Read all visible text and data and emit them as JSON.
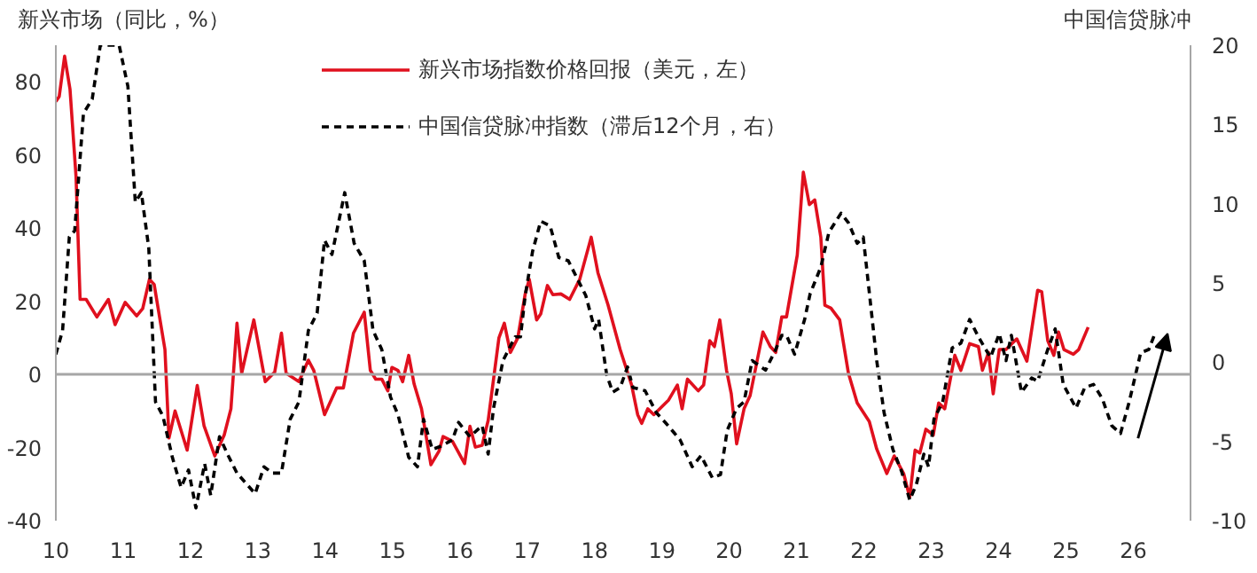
{
  "chart_data": {
    "type": "line",
    "ylabel": "新兴市场（同比，%）",
    "y2label": "中国信贷脉冲",
    "xlim": [
      10,
      26.85
    ],
    "xticks": [
      10,
      11,
      12,
      13,
      14,
      15,
      16,
      17,
      18,
      19,
      20,
      21,
      22,
      23,
      24,
      25,
      26
    ],
    "ylim": [
      -40,
      90
    ],
    "yticks": [
      -40,
      -20,
      0,
      20,
      40,
      60,
      80
    ],
    "y2lim": [
      -10,
      20
    ],
    "y2ticks": [
      -10,
      -5,
      0,
      5,
      10,
      15,
      20
    ],
    "grid": false,
    "legend": "top",
    "ref_lines": [
      {
        "axis": "y",
        "value": 0,
        "color": "#a6a6a6"
      }
    ],
    "series": [
      {
        "name": "新兴市场指数价格回报（美元，左）",
        "color": "#e0101e",
        "line_style": "solid",
        "x": [
          10.0,
          10.05,
          10.13,
          10.21,
          10.3,
          10.36,
          10.45,
          10.61,
          10.78,
          10.88,
          11.03,
          11.2,
          11.29,
          11.39,
          11.46,
          11.62,
          11.68,
          11.77,
          11.95,
          12.1,
          12.2,
          12.36,
          12.5,
          12.6,
          12.69,
          12.76,
          12.94,
          13.11,
          13.25,
          13.35,
          13.42,
          13.61,
          13.75,
          13.83,
          13.99,
          14.17,
          14.27,
          14.42,
          14.58,
          14.67,
          14.75,
          14.84,
          14.93,
          14.99,
          15.08,
          15.15,
          15.24,
          15.32,
          15.43,
          15.57,
          15.69,
          15.75,
          15.89,
          16.07,
          16.15,
          16.23,
          16.33,
          16.42,
          16.58,
          16.66,
          16.75,
          16.86,
          16.97,
          17.03,
          17.14,
          17.2,
          17.3,
          17.38,
          17.5,
          17.63,
          17.78,
          17.95,
          18.05,
          18.2,
          18.38,
          18.55,
          18.64,
          18.7,
          18.79,
          18.88,
          19.1,
          19.23,
          19.3,
          19.38,
          19.54,
          19.62,
          19.71,
          19.78,
          19.86,
          19.96,
          20.03,
          20.11,
          20.22,
          20.31,
          20.5,
          20.61,
          20.69,
          20.78,
          20.85,
          21.01,
          21.1,
          21.19,
          21.27,
          21.36,
          21.42,
          21.51,
          21.64,
          21.77,
          21.9,
          22.08,
          22.19,
          22.34,
          22.45,
          22.59,
          22.68,
          22.76,
          22.83,
          22.92,
          23.03,
          23.11,
          23.2,
          23.35,
          23.44,
          23.57,
          23.7,
          23.76,
          23.85,
          23.92,
          24.01,
          24.11,
          24.27,
          24.42,
          24.58,
          24.64,
          24.73,
          24.82,
          24.89,
          24.97,
          25.11,
          25.19,
          25.33
        ],
        "values": [
          74.6,
          76,
          87,
          78,
          54,
          20.5,
          20.5,
          15.7,
          20.5,
          13.6,
          19.7,
          16,
          18,
          26,
          24.6,
          6.8,
          -17.4,
          -10,
          -20.7,
          -3,
          -14,
          -22.3,
          -16.6,
          -9.4,
          14,
          0.3,
          14.9,
          -2,
          0.6,
          11.3,
          0.3,
          -2,
          3.9,
          1.1,
          -11,
          -3.7,
          -3.7,
          11.3,
          17,
          1.1,
          -1.3,
          -1.3,
          -4.5,
          1.9,
          1.1,
          -2,
          5.2,
          -2.6,
          -9.4,
          -24.7,
          -21,
          -17,
          -18.3,
          -24.4,
          -14.2,
          -19.9,
          -19.4,
          -12.6,
          10,
          14,
          6,
          10,
          22,
          26,
          14.9,
          16.5,
          24.3,
          21.8,
          22,
          20.5,
          26,
          37.5,
          27.8,
          19,
          6.8,
          -2.9,
          -11,
          -13.4,
          -9.4,
          -11,
          -7,
          -2.9,
          -9.4,
          -1.3,
          -4.5,
          -2.9,
          9.2,
          7.6,
          14.9,
          1.1,
          -5.3,
          -19,
          -9.4,
          -5.8,
          11.6,
          7.6,
          6,
          15.7,
          15.7,
          32.6,
          55.3,
          46.4,
          47.7,
          37.5,
          18.9,
          18.1,
          14.9,
          0.3,
          -7.8,
          -12.9,
          -20.4,
          -27.1,
          -22.3,
          -27.1,
          -33.6,
          -20.7,
          -21.5,
          -15,
          -16.6,
          -7.8,
          -9.4,
          5.2,
          1.1,
          8.4,
          7.6,
          1.1,
          6,
          -5.3,
          6.8,
          6.8,
          9.7,
          3.6,
          23,
          22.6,
          9.2,
          5.2,
          11.6,
          6.8,
          5.5,
          6.8,
          12.9
        ]
      },
      {
        "name": "中国信贷脉冲指数（滞后12个月，右）",
        "color": "#000000",
        "line_style": "dashed",
        "axis": "y2",
        "x": [
          10.0,
          10.1,
          10.2,
          10.28,
          10.41,
          10.54,
          10.66,
          10.75,
          10.94,
          11.07,
          11.18,
          11.27,
          11.38,
          11.48,
          11.59,
          11.73,
          11.86,
          11.97,
          12.08,
          12.21,
          12.3,
          12.43,
          12.56,
          12.69,
          12.96,
          13.09,
          13.22,
          13.35,
          13.48,
          13.61,
          13.75,
          13.88,
          13.99,
          14.1,
          14.29,
          14.43,
          14.58,
          14.71,
          14.84,
          14.97,
          15.08,
          15.24,
          15.37,
          15.46,
          15.59,
          15.72,
          15.89,
          15.98,
          16.15,
          16.33,
          16.42,
          16.5,
          16.64,
          16.82,
          16.9,
          16.97,
          17.08,
          17.2,
          17.34,
          17.47,
          17.61,
          17.74,
          17.87,
          18.0,
          18.06,
          18.18,
          18.27,
          18.38,
          18.49,
          18.57,
          18.75,
          18.92,
          19.05,
          19.27,
          19.45,
          19.58,
          19.75,
          19.87,
          19.97,
          20.11,
          20.22,
          20.34,
          20.54,
          20.69,
          20.78,
          20.85,
          20.97,
          21.12,
          21.2,
          21.36,
          21.48,
          21.66,
          21.77,
          21.9,
          21.99,
          22.08,
          22.19,
          22.3,
          22.43,
          22.56,
          22.68,
          22.78,
          22.89,
          22.96,
          23.04,
          23.17,
          23.31,
          23.44,
          23.57,
          23.7,
          23.88,
          24.01,
          24.11,
          24.19,
          24.34,
          24.49,
          24.58,
          24.73,
          24.84,
          24.96,
          25.15,
          25.28,
          25.41,
          25.54,
          25.68,
          25.81,
          25.94,
          26.11,
          26.23,
          26.33
        ],
        "values": [
          0.5,
          2,
          7.9,
          8.3,
          15.7,
          16.6,
          20,
          20,
          20,
          17.4,
          10.1,
          10.7,
          7.2,
          -2.5,
          -3.4,
          -6,
          -7.9,
          -6.8,
          -9.2,
          -6.4,
          -8.4,
          -4.7,
          -5.9,
          -7,
          -8.3,
          -6.6,
          -7,
          -7,
          -3.6,
          -2.5,
          2,
          3.1,
          7.7,
          6.8,
          10.7,
          7.5,
          6.4,
          2,
          0.8,
          -2.2,
          -3.3,
          -6,
          -6.6,
          -3.6,
          -5.5,
          -5.3,
          -4.9,
          -3.8,
          -4.7,
          -4,
          -5.8,
          -2.9,
          0.1,
          1.6,
          1.6,
          4.2,
          7,
          8.9,
          8.6,
          6.6,
          6.4,
          5.3,
          4.2,
          2.1,
          2.7,
          -0.8,
          -1.9,
          -1.6,
          -0.3,
          -1.6,
          -1.8,
          -3.2,
          -3.8,
          -4.9,
          -6.6,
          -5.9,
          -7.3,
          -7.1,
          -4.3,
          -2.9,
          -2.5,
          0.1,
          -0.5,
          0.8,
          1.7,
          1.7,
          0.5,
          2.7,
          4.3,
          6,
          8.2,
          9.4,
          8.8,
          7.5,
          7.9,
          4.4,
          0.1,
          -3.2,
          -5.5,
          -6.9,
          -8.7,
          -7.7,
          -5.8,
          -6.6,
          -3.6,
          -2.5,
          0.9,
          1.2,
          2.7,
          1.6,
          0.3,
          1.8,
          0.1,
          1.7,
          -1.9,
          -1,
          -1.2,
          0.8,
          2.1,
          -1.4,
          -2.9,
          -1.6,
          -1.4,
          -2.3,
          -4,
          -4.5,
          -2.5,
          0.6,
          0.8,
          1.9
        ]
      }
    ]
  }
}
